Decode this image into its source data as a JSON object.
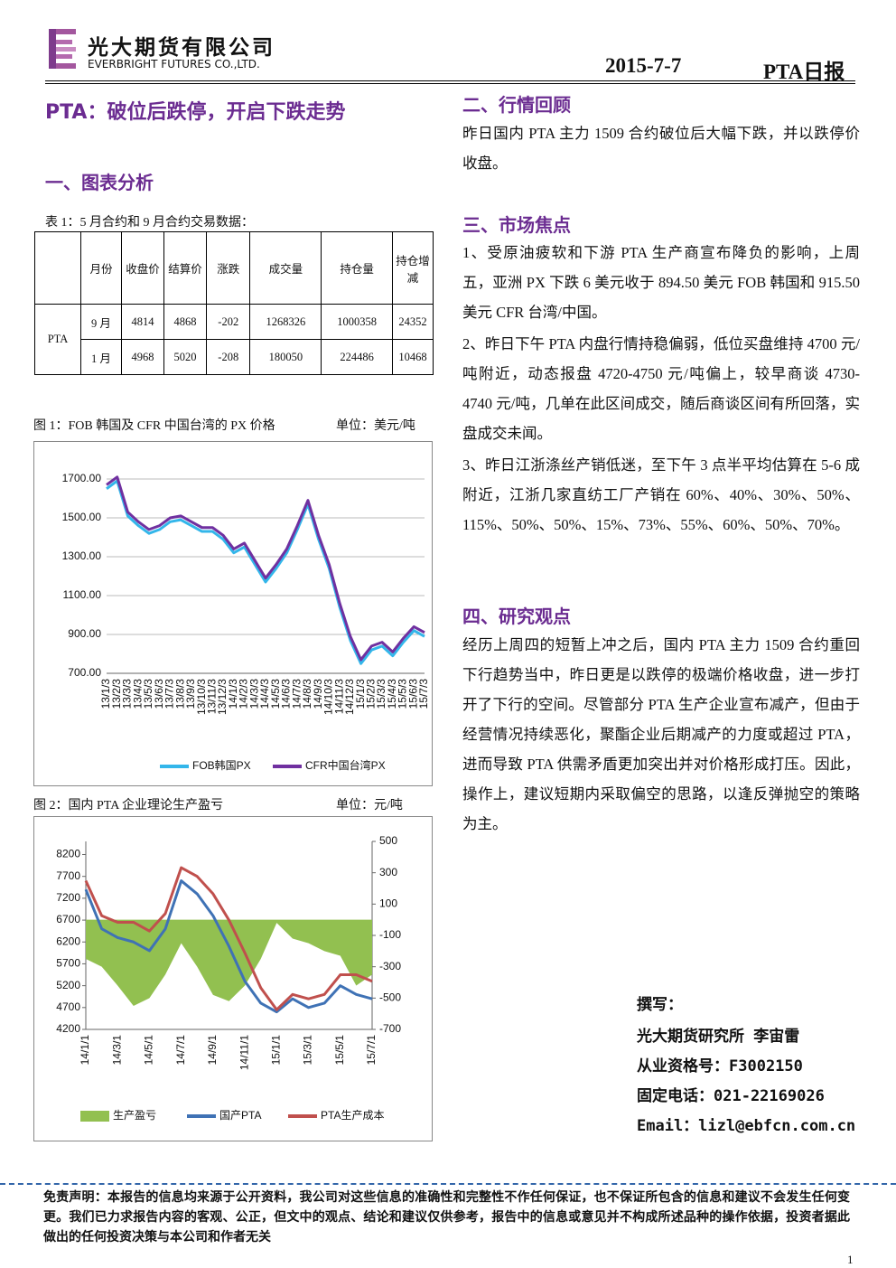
{
  "header": {
    "company": "光大期货有限公司",
    "company_en": "EVERBRIGHT FUTURES CO.,LTD.",
    "date": "2015-7-7",
    "report": "PTA日报"
  },
  "headline": "PTA：破位后跌停，开启下跌走势",
  "section1": {
    "title": "一、图表分析",
    "table_caption": "表 1：5 月合约和 9 月合约交易数据："
  },
  "table": {
    "headers": [
      "月份",
      "收盘价",
      "结算价",
      "涨跌",
      "成交量",
      "持仓量",
      "持仓增减"
    ],
    "product": "PTA",
    "rows": [
      [
        "9 月",
        "4814",
        "4868",
        "-202",
        "1268326",
        "1000358",
        "24352"
      ],
      [
        "1 月",
        "4968",
        "5020",
        "-208",
        "180050",
        "224486",
        "10468"
      ]
    ]
  },
  "section2": {
    "title": "二、行情回顾",
    "text": "昨日国内 PTA 主力 1509 合约破位后大幅下跌，并以跌停价收盘。"
  },
  "section3": {
    "title": "三、市场焦点",
    "paragraphs": [
      "1、受原油疲软和下游 PTA 生产商宣布降负的影响，上周五，亚洲 PX 下跌 6 美元收于 894.50 美元 FOB 韩国和 915.50 美元 CFR 台湾/中国。",
      "2、昨日下午 PTA 内盘行情持稳偏弱，低位买盘维持 4700 元/吨附近，动态报盘 4720-4750 元/吨偏上，较早商谈 4730-4740 元/吨，几单在此区间成交，随后商谈区间有所回落，实盘成交未闻。",
      "3、昨日江浙涤丝产销低迷，至下午 3 点半平均估算在 5-6 成附近，江浙几家直纺工厂产销在 60%、40%、30%、50%、115%、50%、50%、15%、73%、55%、60%、50%、70%。"
    ]
  },
  "section4": {
    "title": "四、研究观点",
    "text": "经历上周四的短暂上冲之后，国内 PTA 主力 1509 合约重回下行趋势当中，昨日更是以跌停的极端价格收盘，进一步打开了下行的空间。尽管部分 PTA 生产企业宣布减产，但由于经营情况持续恶化，聚酯企业后期减产的力度或超过 PTA，进而导致 PTA 供需矛盾更加突出并对价格形成打压。因此，操作上，建议短期内采取偏空的思路，以逢反弹抛空的策略为主。"
  },
  "author": [
    "撰写：",
    "光大期货研究所 李宙雷",
    "从业资格号：F3002150",
    "固定电话：021-22169026",
    "Email：lizl@ebfcn.com.cn"
  ],
  "disclaimer": "免责声明：本报告的信息均来源于公开资料，我公司对这些信息的准确性和完整性不作任何保证，也不保证所包含的信息和建议不会发生任何变更。我们已力求报告内容的客观、公正，但文中的观点、结论和建议仅供参考，报告中的信息或意见并不构成所述品种的操作依据，投资者据此做出的任何投资决策与本公司和作者无关",
  "page": "1",
  "chart_data": [
    {
      "type": "line",
      "title": "图 1：FOB 韩国及 CFR 中国台湾的 PX 价格",
      "unit": "单位：美元/吨",
      "grid": true,
      "categories": [
        "13/1/3",
        "13/2/3",
        "13/3/3",
        "13/4/3",
        "13/5/3",
        "13/6/3",
        "13/7/3",
        "13/8/3",
        "13/9/3",
        "13/10/3",
        "13/11/3",
        "13/12/3",
        "14/1/3",
        "14/2/3",
        "14/3/3",
        "14/4/3",
        "14/5/3",
        "14/6/3",
        "14/7/3",
        "14/8/3",
        "14/9/3",
        "14/10/3",
        "14/11/3",
        "14/12/3",
        "15/1/3",
        "15/2/3",
        "15/3/3",
        "15/4/3",
        "15/5/3",
        "15/6/3",
        "15/7/3"
      ],
      "ylim": [
        700,
        1800
      ],
      "yticks": [
        {
          "value": 700,
          "label": "700.00"
        },
        {
          "value": 900,
          "label": "900.00"
        },
        {
          "value": 1100,
          "label": "1100.00"
        },
        {
          "value": 1300,
          "label": "1300.00"
        },
        {
          "value": 1500,
          "label": "1500.00"
        },
        {
          "value": 1700,
          "label": "1700.00"
        }
      ],
      "series": [
        {
          "name": "FOB韩国PX",
          "color": "#33b6ea",
          "values": [
            1650,
            1690,
            1510,
            1460,
            1420,
            1440,
            1480,
            1490,
            1460,
            1430,
            1430,
            1390,
            1320,
            1350,
            1260,
            1170,
            1240,
            1320,
            1440,
            1570,
            1390,
            1240,
            1040,
            870,
            750,
            820,
            840,
            790,
            860,
            920,
            890
          ]
        },
        {
          "name": "CFR中国台湾PX",
          "color": "#7030a0",
          "values": [
            1670,
            1710,
            1530,
            1480,
            1440,
            1460,
            1500,
            1510,
            1480,
            1450,
            1450,
            1410,
            1340,
            1370,
            1280,
            1190,
            1260,
            1340,
            1460,
            1590,
            1410,
            1260,
            1060,
            890,
            770,
            840,
            860,
            810,
            880,
            940,
            910
          ]
        }
      ]
    },
    {
      "type": "line",
      "title": "图 2：国内 PTA 企业理论生产盈亏",
      "unit": "单位：元/吨",
      "grid": false,
      "categories": [
        "14/1/1",
        null,
        "14/3/1",
        null,
        "14/5/1",
        null,
        "14/7/1",
        null,
        "14/9/1",
        null,
        "14/11/1",
        null,
        "15/1/1",
        null,
        "15/3/1",
        null,
        "15/5/1",
        null,
        "15/7/1"
      ],
      "ylim": [
        4200,
        8500
      ],
      "yticks": [
        4200,
        4700,
        5200,
        5700,
        6200,
        6700,
        7200,
        7700,
        8200
      ],
      "y2lim": [
        -700,
        500
      ],
      "y2ticks": [
        -700,
        -500,
        -300,
        -100,
        100,
        300,
        500
      ],
      "series": [
        {
          "name": "生产盈亏",
          "color": "#92c050",
          "type": "area",
          "axis": "y2",
          "values": [
            -250,
            -300,
            -420,
            -550,
            -500,
            -350,
            -150,
            -300,
            -480,
            -520,
            -420,
            -250,
            -20,
            -120,
            -150,
            -200,
            -230,
            -420,
            -350
          ]
        },
        {
          "name": "国产PTA",
          "color": "#3f72b5",
          "values": [
            7400,
            6500,
            6300,
            6200,
            6000,
            6500,
            7600,
            7300,
            6800,
            6100,
            5300,
            4800,
            4600,
            4900,
            4700,
            4800,
            5200,
            5000,
            4900
          ]
        },
        {
          "name": "PTA生产成本",
          "color": "#c0504d",
          "values": [
            7600,
            6800,
            6650,
            6650,
            6450,
            6850,
            7900,
            7700,
            7300,
            6700,
            5950,
            5150,
            4650,
            5000,
            4900,
            5000,
            5450,
            5450,
            5300
          ]
        }
      ]
    }
  ]
}
